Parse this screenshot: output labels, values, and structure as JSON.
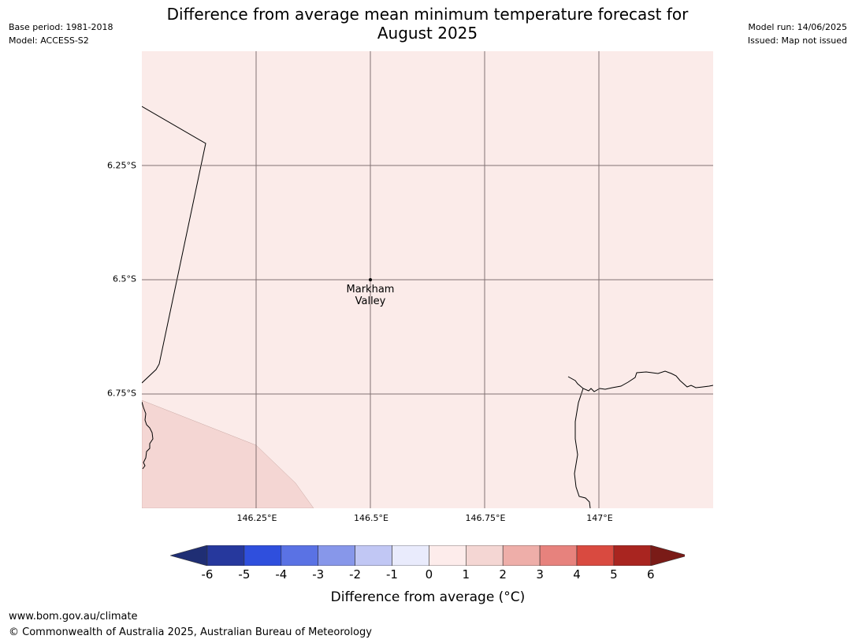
{
  "header": {
    "title_line1": "Difference from average mean minimum temperature forecast for",
    "title_line2": "August 2025",
    "base_period": "Base period: 1981-2018",
    "model": "Model: ACCESS-S2",
    "model_run": "Model run: 14/06/2025",
    "issued": "Issued: Map not issued"
  },
  "map": {
    "lat_ticks": [
      "6.25°S",
      "6.5°S",
      "6.75°S"
    ],
    "lon_ticks": [
      "146.25°E",
      "146.5°E",
      "146.75°E",
      "147°E"
    ],
    "place": {
      "line1": "Markham",
      "line2": "Valley"
    },
    "fill_colors": {
      "background": "#fbebe9",
      "lower_region": "#f4d6d3"
    }
  },
  "colorbar": {
    "labels": [
      "-6",
      "-5",
      "-4",
      "-3",
      "-2",
      "-1",
      "0",
      "1",
      "2",
      "3",
      "4",
      "5",
      "6"
    ],
    "colors": [
      "#26389d",
      "#2f4fdd",
      "#5a72e4",
      "#8797ea",
      "#c1c7f4",
      "#e9ebfc",
      "#fdeceb",
      "#f4d6d3",
      "#eeaea9",
      "#e7827d",
      "#d94a40",
      "#a92520"
    ],
    "under_color": "#1f2e74",
    "over_color": "#7a1b17",
    "title": "Difference from average (°C)"
  },
  "footer": {
    "url": "www.bom.gov.au/climate",
    "copyright": "© Commonwealth of Australia 2025, Australian Bureau of Meteorology"
  }
}
